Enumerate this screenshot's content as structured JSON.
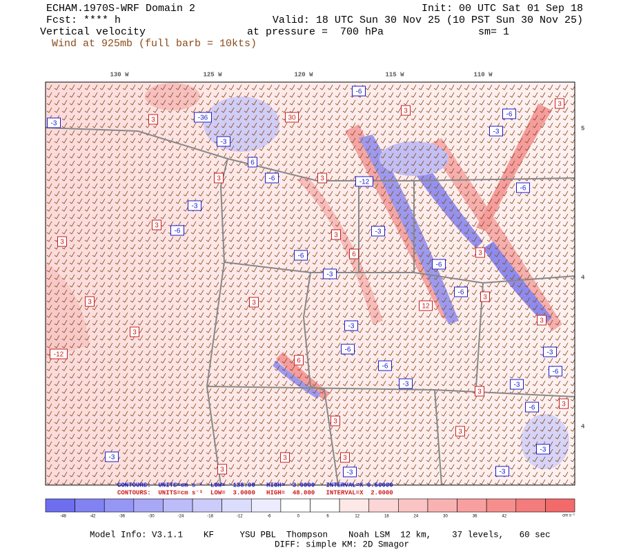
{
  "header": {
    "title": "ECHAM.1970S-WRF Domain 2",
    "init": "Init: 00 UTC Sat 01 Sep 18",
    "forecast": "Fcst: **** h",
    "valid": "Valid: 18 UTC Sun 30 Nov 25 (10 PST Sun 30 Nov 25)",
    "field": "Vertical velocity",
    "level": "at pressure =  700 hPa",
    "smoothing": "sm= 1",
    "wind": "Wind at 925mb (full barb = 10kts)"
  },
  "map": {
    "longitude_labels": [
      "130 W",
      "125 W",
      "120 W",
      "115 W",
      "110 W"
    ],
    "latitude_labels": [
      "5",
      "4",
      "4"
    ],
    "contour_labels": [
      "-3",
      "3",
      "-36",
      "-3",
      "6",
      "3",
      "-6",
      "30",
      "-3",
      "3",
      "-6",
      "3",
      "-6",
      "3",
      "-6",
      "-3",
      "3",
      "-6",
      "-12",
      "3",
      "-3",
      "3",
      "-6",
      "6",
      "-6",
      "3",
      "3",
      "-3",
      "3",
      "3",
      "-12",
      "-3",
      "-6",
      "6",
      "-6",
      "12",
      "-6",
      "3",
      "3",
      "-6",
      "-3",
      "-3",
      "-3",
      "3",
      "-6",
      "3",
      "3",
      "3",
      "3",
      "3",
      "-3",
      "-3",
      "-3",
      "3",
      "-3"
    ]
  },
  "contour_info": {
    "negative": "CONTOURS:  UNITS=cm s⁻¹  LOW= -138.00   HIGH= -3.0000   INTERVAL=X 0.50000",
    "positive": "CONTOURS:  UNITS=cm s⁻¹  LOW=  3.0000   HIGH=  48.000   INTERVAL=X  2.0000"
  },
  "colorbar": {
    "ticks": [
      -48,
      -42,
      -36,
      -30,
      -24,
      -18,
      -12,
      -6,
      0,
      6,
      12,
      18,
      24,
      30,
      36,
      42
    ],
    "unit": "cm s⁻¹",
    "colors": [
      "#6e6ef0",
      "#8282f2",
      "#9696f4",
      "#a8a8f6",
      "#bcbcf8",
      "#cccbfa",
      "#dcdcfc",
      "#ececfe",
      "#ffffff",
      "#ffffff",
      "#fde8e8",
      "#fcd6d6",
      "#fbc4c4",
      "#f9b2b2",
      "#f8a0a0",
      "#f68e8e",
      "#f47c7c",
      "#f26a6a"
    ]
  },
  "footer": {
    "model_info": "Model Info: V3.1.1    KF     YSU PBL  Thompson    Noah LSM  12 km,    37 levels,   60 sec",
    "diff": "DIFF: simple KM: 2D Smagor"
  }
}
